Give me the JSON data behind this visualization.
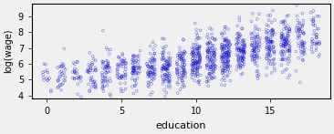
{
  "xlabel": "education",
  "ylabel": "log(wage)",
  "xlim": [
    -1,
    19
  ],
  "ylim": [
    3.8,
    9.8
  ],
  "yticks": [
    4,
    5,
    6,
    7,
    8,
    9
  ],
  "xticks": [
    0,
    5,
    10,
    15
  ],
  "bg_color": "#f0f0f0",
  "point_color": "#0000cc",
  "point_size": 4,
  "point_alpha": 0.5,
  "seed": 42,
  "education_levels": [
    0,
    1,
    2,
    3,
    4,
    5,
    6,
    7,
    8,
    9,
    10,
    11,
    12,
    13,
    14,
    15,
    16,
    17,
    18
  ],
  "n_per_level": [
    15,
    30,
    25,
    40,
    55,
    50,
    60,
    70,
    90,
    80,
    120,
    110,
    130,
    100,
    80,
    90,
    100,
    60,
    40
  ],
  "wage_means": [
    5.2,
    5.3,
    5.3,
    5.4,
    5.4,
    5.5,
    5.6,
    5.7,
    5.8,
    5.9,
    6.2,
    6.4,
    6.5,
    6.8,
    7.0,
    7.2,
    7.4,
    7.6,
    7.8
  ],
  "wage_stds": [
    0.5,
    0.6,
    0.6,
    0.7,
    0.7,
    0.6,
    0.6,
    0.6,
    0.7,
    0.7,
    0.8,
    0.8,
    0.8,
    0.8,
    0.8,
    0.8,
    0.8,
    0.8,
    0.8
  ]
}
